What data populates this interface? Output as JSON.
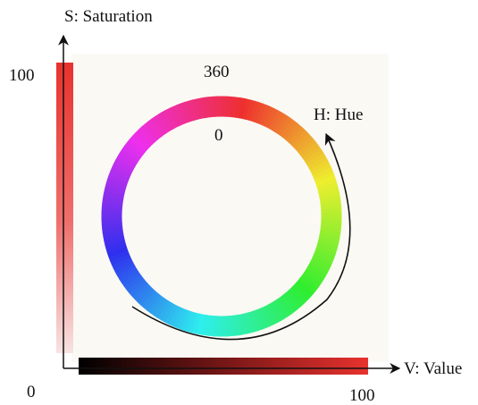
{
  "labels": {
    "s_axis": "S: Saturation",
    "h_axis": "H: Hue",
    "v_axis": "V: Value",
    "s_max": "100",
    "origin": "0",
    "v_max": "100",
    "hue_max": "360",
    "hue_min": "0"
  },
  "colors": {
    "saturation_bar_top": "#e8322e",
    "saturation_bar_bottom": "#f7dcdc",
    "value_bar_start": "#000000",
    "value_bar_end": "#e8322e",
    "background_panel": "#fbf9f4",
    "axis": "#111111"
  },
  "hue_wheel": {
    "hue_range": [
      0,
      360
    ],
    "start_color": "#ff2a4a",
    "direction": "clockwise"
  }
}
